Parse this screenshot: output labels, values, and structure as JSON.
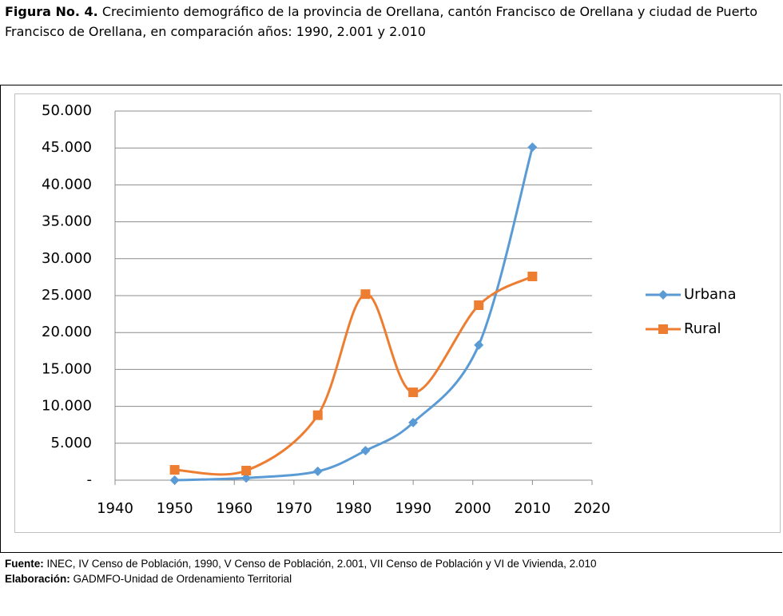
{
  "caption": {
    "label": "Figura No. 4.",
    "text": "Crecimiento demográfico de la provincia de Orellana, cantón Francisco de Orellana y ciudad de Puerto Francisco de Orellana, en comparación años: 1990, 2.001 y 2.010"
  },
  "chart_data": {
    "type": "line",
    "x": [
      1950,
      1962,
      1974,
      1982,
      1990,
      2001,
      2010
    ],
    "series": [
      {
        "name": "Urbana",
        "color": "#5b9bd5",
        "marker": "diamond",
        "values": [
          0,
          300,
          1200,
          4000,
          7800,
          18300,
          45100
        ]
      },
      {
        "name": "Rural",
        "color": "#ed7d31",
        "marker": "square",
        "values": [
          1400,
          1300,
          8800,
          25200,
          11900,
          23700,
          27600
        ]
      }
    ],
    "xlim": [
      1940,
      2020
    ],
    "xticks": [
      1940,
      1950,
      1960,
      1970,
      1980,
      1990,
      2000,
      2010,
      2020
    ],
    "ylim": [
      0,
      50000
    ],
    "yticks": [
      {
        "value": 0,
        "label": "-"
      },
      {
        "value": 5000,
        "label": "5.000"
      },
      {
        "value": 10000,
        "label": "10.000"
      },
      {
        "value": 15000,
        "label": "15.000"
      },
      {
        "value": 20000,
        "label": "20.000"
      },
      {
        "value": 25000,
        "label": "25.000"
      },
      {
        "value": 30000,
        "label": "30.000"
      },
      {
        "value": 35000,
        "label": "35.000"
      },
      {
        "value": 40000,
        "label": "40.000"
      },
      {
        "value": 45000,
        "label": "45.000"
      },
      {
        "value": 50000,
        "label": "50.000"
      }
    ],
    "grid": true,
    "smooth": true,
    "legend": "right"
  },
  "footer": {
    "source_label": "Fuente:",
    "source": "INEC, IV Censo de Población, 1990, V Censo de Población, 2.001, VII Censo de Población y VI de Vivienda, 2.010",
    "credit_label": "Elaboración:",
    "credit": "GADMFO-Unidad de Ordenamiento Territorial"
  }
}
